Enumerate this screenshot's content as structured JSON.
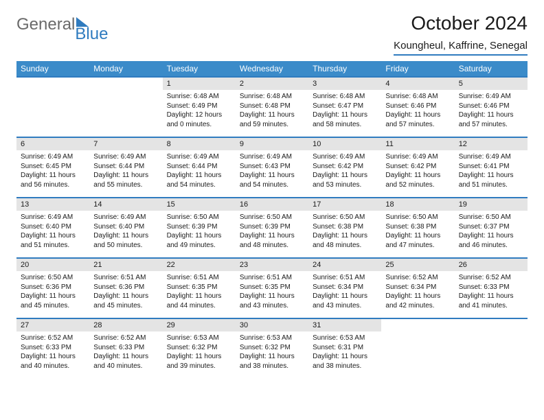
{
  "logo": {
    "text1": "General",
    "text2": "Blue"
  },
  "title": "October 2024",
  "subtitle": "Koungheul, Kaffrine, Senegal",
  "colors": {
    "header_bg": "#3b8bc9",
    "header_text": "#ffffff",
    "border": "#2f7bbf",
    "daynum_bg": "#e4e4e4",
    "text": "#1a1a1a",
    "logo_gray": "#6a6a6a",
    "logo_blue": "#2f7bbf",
    "page_bg": "#ffffff"
  },
  "weekdays": [
    "Sunday",
    "Monday",
    "Tuesday",
    "Wednesday",
    "Thursday",
    "Friday",
    "Saturday"
  ],
  "weeks": [
    [
      {
        "n": "",
        "sr": "",
        "ss": "",
        "dl": ""
      },
      {
        "n": "",
        "sr": "",
        "ss": "",
        "dl": ""
      },
      {
        "n": "1",
        "sr": "Sunrise: 6:48 AM",
        "ss": "Sunset: 6:49 PM",
        "dl": "Daylight: 12 hours and 0 minutes."
      },
      {
        "n": "2",
        "sr": "Sunrise: 6:48 AM",
        "ss": "Sunset: 6:48 PM",
        "dl": "Daylight: 11 hours and 59 minutes."
      },
      {
        "n": "3",
        "sr": "Sunrise: 6:48 AM",
        "ss": "Sunset: 6:47 PM",
        "dl": "Daylight: 11 hours and 58 minutes."
      },
      {
        "n": "4",
        "sr": "Sunrise: 6:48 AM",
        "ss": "Sunset: 6:46 PM",
        "dl": "Daylight: 11 hours and 57 minutes."
      },
      {
        "n": "5",
        "sr": "Sunrise: 6:49 AM",
        "ss": "Sunset: 6:46 PM",
        "dl": "Daylight: 11 hours and 57 minutes."
      }
    ],
    [
      {
        "n": "6",
        "sr": "Sunrise: 6:49 AM",
        "ss": "Sunset: 6:45 PM",
        "dl": "Daylight: 11 hours and 56 minutes."
      },
      {
        "n": "7",
        "sr": "Sunrise: 6:49 AM",
        "ss": "Sunset: 6:44 PM",
        "dl": "Daylight: 11 hours and 55 minutes."
      },
      {
        "n": "8",
        "sr": "Sunrise: 6:49 AM",
        "ss": "Sunset: 6:44 PM",
        "dl": "Daylight: 11 hours and 54 minutes."
      },
      {
        "n": "9",
        "sr": "Sunrise: 6:49 AM",
        "ss": "Sunset: 6:43 PM",
        "dl": "Daylight: 11 hours and 54 minutes."
      },
      {
        "n": "10",
        "sr": "Sunrise: 6:49 AM",
        "ss": "Sunset: 6:42 PM",
        "dl": "Daylight: 11 hours and 53 minutes."
      },
      {
        "n": "11",
        "sr": "Sunrise: 6:49 AM",
        "ss": "Sunset: 6:42 PM",
        "dl": "Daylight: 11 hours and 52 minutes."
      },
      {
        "n": "12",
        "sr": "Sunrise: 6:49 AM",
        "ss": "Sunset: 6:41 PM",
        "dl": "Daylight: 11 hours and 51 minutes."
      }
    ],
    [
      {
        "n": "13",
        "sr": "Sunrise: 6:49 AM",
        "ss": "Sunset: 6:40 PM",
        "dl": "Daylight: 11 hours and 51 minutes."
      },
      {
        "n": "14",
        "sr": "Sunrise: 6:49 AM",
        "ss": "Sunset: 6:40 PM",
        "dl": "Daylight: 11 hours and 50 minutes."
      },
      {
        "n": "15",
        "sr": "Sunrise: 6:50 AM",
        "ss": "Sunset: 6:39 PM",
        "dl": "Daylight: 11 hours and 49 minutes."
      },
      {
        "n": "16",
        "sr": "Sunrise: 6:50 AM",
        "ss": "Sunset: 6:39 PM",
        "dl": "Daylight: 11 hours and 48 minutes."
      },
      {
        "n": "17",
        "sr": "Sunrise: 6:50 AM",
        "ss": "Sunset: 6:38 PM",
        "dl": "Daylight: 11 hours and 48 minutes."
      },
      {
        "n": "18",
        "sr": "Sunrise: 6:50 AM",
        "ss": "Sunset: 6:38 PM",
        "dl": "Daylight: 11 hours and 47 minutes."
      },
      {
        "n": "19",
        "sr": "Sunrise: 6:50 AM",
        "ss": "Sunset: 6:37 PM",
        "dl": "Daylight: 11 hours and 46 minutes."
      }
    ],
    [
      {
        "n": "20",
        "sr": "Sunrise: 6:50 AM",
        "ss": "Sunset: 6:36 PM",
        "dl": "Daylight: 11 hours and 45 minutes."
      },
      {
        "n": "21",
        "sr": "Sunrise: 6:51 AM",
        "ss": "Sunset: 6:36 PM",
        "dl": "Daylight: 11 hours and 45 minutes."
      },
      {
        "n": "22",
        "sr": "Sunrise: 6:51 AM",
        "ss": "Sunset: 6:35 PM",
        "dl": "Daylight: 11 hours and 44 minutes."
      },
      {
        "n": "23",
        "sr": "Sunrise: 6:51 AM",
        "ss": "Sunset: 6:35 PM",
        "dl": "Daylight: 11 hours and 43 minutes."
      },
      {
        "n": "24",
        "sr": "Sunrise: 6:51 AM",
        "ss": "Sunset: 6:34 PM",
        "dl": "Daylight: 11 hours and 43 minutes."
      },
      {
        "n": "25",
        "sr": "Sunrise: 6:52 AM",
        "ss": "Sunset: 6:34 PM",
        "dl": "Daylight: 11 hours and 42 minutes."
      },
      {
        "n": "26",
        "sr": "Sunrise: 6:52 AM",
        "ss": "Sunset: 6:33 PM",
        "dl": "Daylight: 11 hours and 41 minutes."
      }
    ],
    [
      {
        "n": "27",
        "sr": "Sunrise: 6:52 AM",
        "ss": "Sunset: 6:33 PM",
        "dl": "Daylight: 11 hours and 40 minutes."
      },
      {
        "n": "28",
        "sr": "Sunrise: 6:52 AM",
        "ss": "Sunset: 6:33 PM",
        "dl": "Daylight: 11 hours and 40 minutes."
      },
      {
        "n": "29",
        "sr": "Sunrise: 6:53 AM",
        "ss": "Sunset: 6:32 PM",
        "dl": "Daylight: 11 hours and 39 minutes."
      },
      {
        "n": "30",
        "sr": "Sunrise: 6:53 AM",
        "ss": "Sunset: 6:32 PM",
        "dl": "Daylight: 11 hours and 38 minutes."
      },
      {
        "n": "31",
        "sr": "Sunrise: 6:53 AM",
        "ss": "Sunset: 6:31 PM",
        "dl": "Daylight: 11 hours and 38 minutes."
      },
      {
        "n": "",
        "sr": "",
        "ss": "",
        "dl": ""
      },
      {
        "n": "",
        "sr": "",
        "ss": "",
        "dl": ""
      }
    ]
  ]
}
